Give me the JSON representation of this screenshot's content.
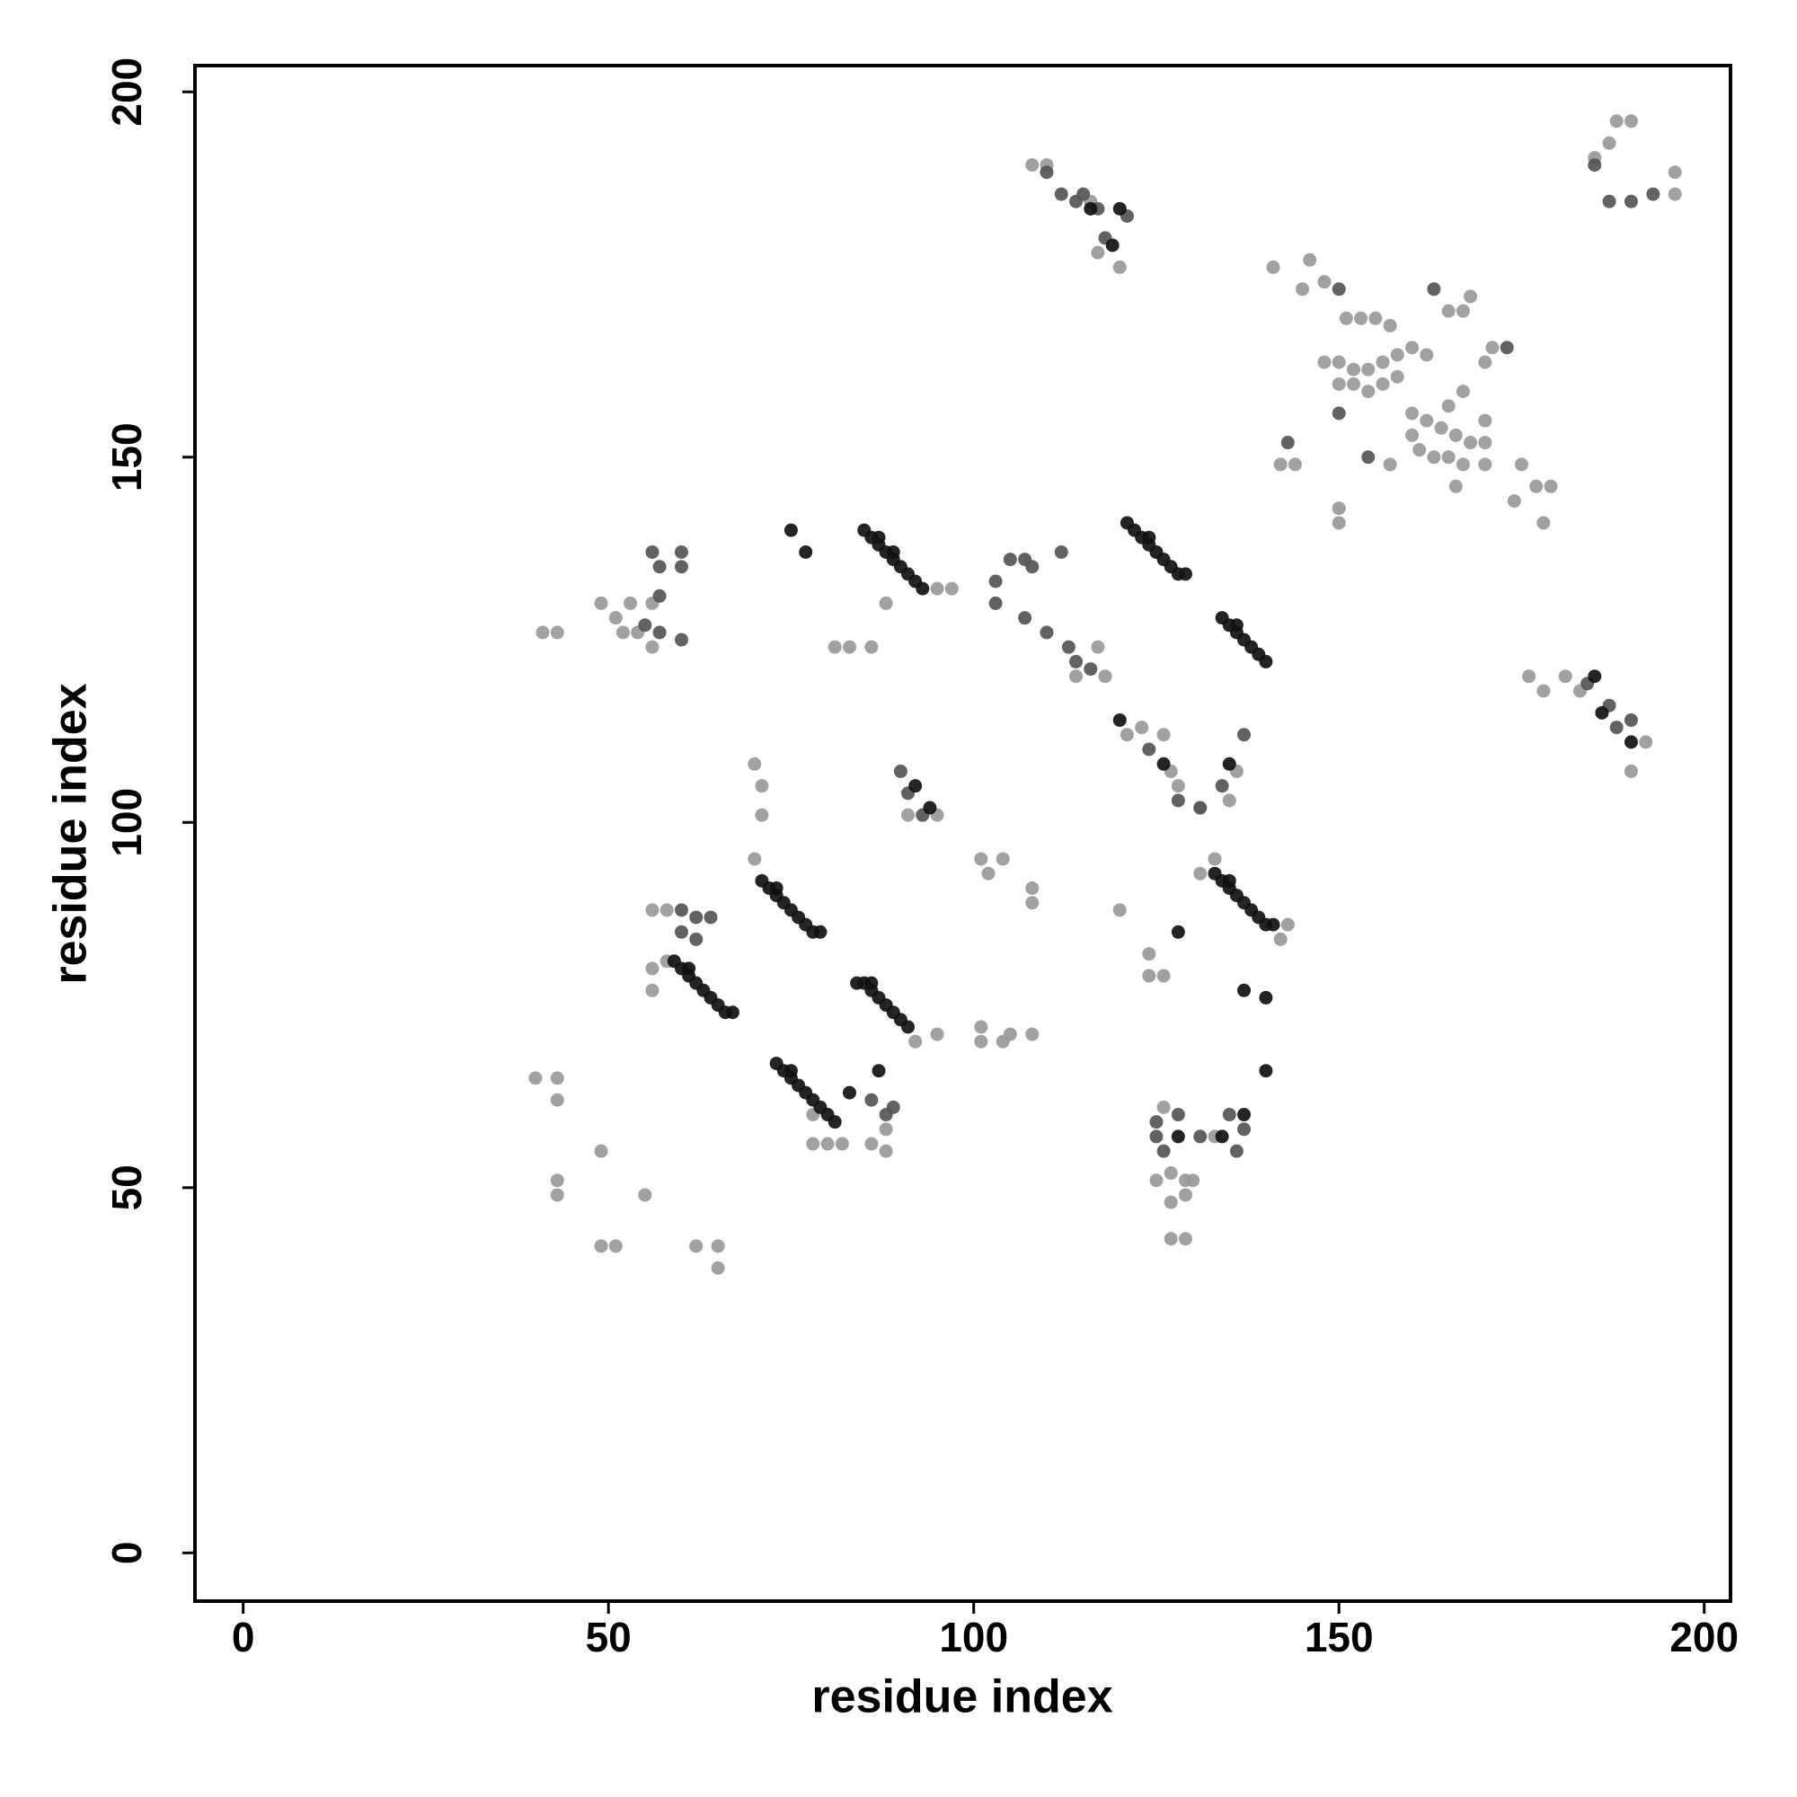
{
  "chart_data": {
    "type": "scatter",
    "xlabel": "residue index",
    "ylabel": "residue index",
    "xlim": [
      -6.6,
      203.6
    ],
    "ylim": [
      -6.6,
      203.6
    ],
    "xticks": [
      0,
      50,
      100,
      150,
      200
    ],
    "yticks": [
      0,
      50,
      100,
      150,
      200
    ],
    "series": [
      {
        "color": "#999999",
        "x": [
          41,
          43,
          49,
          51,
          52,
          54,
          53,
          56,
          56,
          40,
          43,
          43,
          43,
          43,
          49,
          49,
          51,
          55,
          62,
          65,
          65,
          56,
          56,
          58,
          56,
          58,
          70,
          71,
          71,
          70,
          78,
          80,
          78,
          82,
          86,
          88,
          88,
          81,
          83,
          86,
          88,
          95,
          97,
          95,
          92,
          101,
          101,
          104,
          105,
          108,
          101,
          102,
          104,
          108,
          108,
          91,
          95,
          117,
          114,
          118,
          108,
          110,
          116,
          117,
          120,
          141,
          146,
          145,
          148,
          151,
          153,
          155,
          157,
          148,
          150,
          152,
          154,
          156,
          158,
          160,
          150,
          152,
          154,
          156,
          158,
          162,
          165,
          167,
          168,
          160,
          162,
          164,
          166,
          168,
          161,
          163,
          165,
          167,
          170,
          160,
          165,
          167,
          170,
          170,
          142,
          144,
          150,
          150,
          157,
          166,
          170,
          171,
          175,
          177,
          174,
          178,
          179,
          176,
          178,
          181,
          183,
          185,
          187,
          188,
          190,
          196,
          196,
          192,
          190,
          121,
          123,
          126,
          127,
          128,
          131,
          135,
          136,
          133,
          131,
          143,
          142,
          120,
          124,
          124,
          126,
          125,
          127,
          129,
          130,
          129,
          127,
          127,
          129,
          133,
          126
        ],
        "values": [
          126,
          126,
          130,
          128,
          126,
          126,
          130,
          130,
          124,
          65,
          65,
          62,
          51,
          49,
          55,
          42,
          42,
          49,
          42,
          42,
          39,
          80,
          77,
          81,
          88,
          88,
          108,
          105,
          101,
          95,
          56,
          56,
          60,
          56,
          56,
          55,
          58,
          124,
          124,
          124,
          130,
          132,
          132,
          71,
          70,
          72,
          70,
          70,
          71,
          71,
          95,
          93,
          95,
          91,
          89,
          101,
          101,
          124,
          120,
          120,
          190,
          190,
          185,
          178,
          176,
          176,
          177,
          173,
          174,
          169,
          169,
          169,
          168,
          163,
          163,
          162,
          162,
          163,
          164,
          165,
          160,
          160,
          159,
          160,
          161,
          164,
          170,
          170,
          172,
          156,
          155,
          154,
          153,
          152,
          151,
          150,
          150,
          149,
          149,
          153,
          157,
          159,
          155,
          152,
          149,
          149,
          141,
          143,
          149,
          146,
          163,
          165,
          149,
          146,
          144,
          141,
          146,
          120,
          118,
          120,
          118,
          191,
          193,
          196,
          196,
          189,
          186,
          111,
          107,
          112,
          113,
          112,
          107,
          105,
          102,
          103,
          107,
          95,
          93,
          86,
          84,
          88,
          82,
          79,
          79,
          51,
          52,
          51,
          51,
          49,
          48,
          43,
          43,
          57,
          61
        ]
      },
      {
        "color": "#555555",
        "x": [
          56,
          57,
          60,
          60,
          57,
          55,
          57,
          60,
          62,
          60,
          60,
          62,
          64,
          86,
          88,
          89,
          110,
          112,
          115,
          114,
          117,
          121,
          118,
          105,
          107,
          108,
          112,
          110,
          113,
          114,
          116,
          103,
          103,
          107,
          91,
          93,
          90,
          124,
          128,
          134,
          137,
          131,
          125,
          125,
          126,
          128,
          135,
          137,
          136,
          131,
          150,
          154,
          163,
          173,
          150,
          184,
          187,
          188,
          190,
          190,
          193,
          185,
          187,
          143
        ],
        "values": [
          137,
          135,
          137,
          135,
          131,
          127,
          126,
          125,
          87,
          88,
          85,
          84,
          87,
          62,
          60,
          61,
          189,
          186,
          186,
          185,
          184,
          183,
          180,
          136,
          136,
          135,
          137,
          126,
          124,
          122,
          121,
          133,
          130,
          128,
          104,
          101,
          107,
          110,
          103,
          105,
          112,
          102,
          59,
          57,
          55,
          60,
          60,
          58,
          55,
          57,
          173,
          150,
          173,
          165,
          156,
          119,
          116,
          113,
          114,
          185,
          186,
          190,
          185,
          152
        ]
      },
      {
        "color": "#111111",
        "x": [
          85,
          86,
          87,
          88,
          89,
          90,
          91,
          92,
          93,
          87,
          89,
          121,
          122,
          123,
          124,
          125,
          126,
          127,
          128,
          129,
          124,
          134,
          135,
          136,
          137,
          138,
          139,
          140,
          136,
          59,
          60,
          61,
          62,
          63,
          64,
          65,
          66,
          67,
          61,
          71,
          72,
          73,
          74,
          75,
          76,
          77,
          78,
          79,
          73,
          84,
          85,
          86,
          87,
          88,
          89,
          90,
          91,
          86,
          73,
          74,
          75,
          76,
          77,
          78,
          79,
          80,
          81,
          75,
          133,
          134,
          135,
          136,
          137,
          138,
          139,
          140,
          141,
          135,
          75,
          77,
          92,
          94,
          116,
          120,
          119,
          185,
          186,
          190,
          137,
          140,
          128,
          126,
          120,
          134,
          137,
          135,
          128,
          83,
          87,
          140
        ],
        "values": [
          140,
          139,
          138,
          137,
          136,
          135,
          134,
          133,
          132,
          139,
          137,
          141,
          140,
          139,
          138,
          137,
          136,
          135,
          134,
          134,
          139,
          128,
          127,
          126,
          125,
          124,
          123,
          122,
          127,
          81,
          80,
          79,
          78,
          77,
          76,
          75,
          74,
          74,
          80,
          92,
          91,
          90,
          89,
          88,
          87,
          86,
          85,
          85,
          91,
          78,
          78,
          77,
          76,
          75,
          74,
          73,
          72,
          78,
          67,
          66,
          65,
          64,
          63,
          62,
          61,
          60,
          59,
          66,
          93,
          92,
          91,
          90,
          89,
          88,
          87,
          86,
          86,
          92,
          140,
          137,
          105,
          102,
          184,
          184,
          179,
          120,
          115,
          111,
          77,
          76,
          85,
          108,
          114,
          57,
          60,
          108,
          57,
          63,
          66,
          66
        ]
      }
    ]
  }
}
